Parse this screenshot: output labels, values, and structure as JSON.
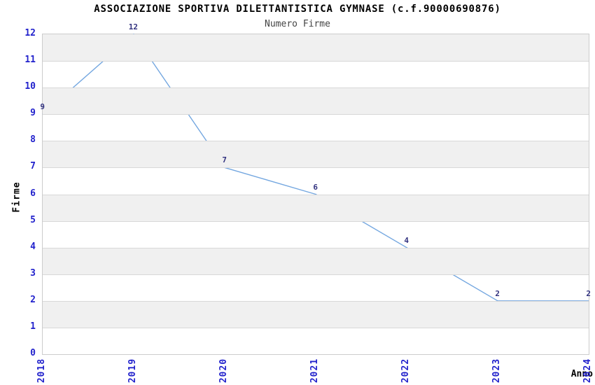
{
  "page": {
    "title": "ASSOCIAZIONE SPORTIVA DILETTANTISTICA GYMNASE (c.f.90000690876)",
    "subtitle": "Numero Firme"
  },
  "chart_data": {
    "type": "line",
    "title": "ASSOCIAZIONE SPORTIVA DILETTANTISTICA GYMNASE (c.f.90000690876)",
    "subtitle": "Numero Firme",
    "xlabel": "Anno",
    "ylabel": "Firme",
    "categories": [
      "2018",
      "2019",
      "2020",
      "2021",
      "2022",
      "2023",
      "2024"
    ],
    "series": [
      {
        "name": "Numero Firme",
        "values": [
          9,
          12,
          7,
          6,
          4,
          2,
          2
        ]
      }
    ],
    "point_labels": [
      "9",
      "12",
      "7",
      "6",
      "4",
      "2",
      "2"
    ],
    "ylim": [
      0,
      12
    ],
    "y_ticks": [
      0,
      1,
      2,
      3,
      4,
      5,
      6,
      7,
      8,
      9,
      10,
      11,
      12
    ],
    "grid": true,
    "legend": "none",
    "shaded_bands": [
      [
        1,
        2
      ],
      [
        3,
        4
      ],
      [
        5,
        6
      ],
      [
        7,
        8
      ],
      [
        9,
        10
      ],
      [
        11,
        12
      ]
    ],
    "colors": {
      "line": "#74a7e0",
      "tick_label": "#2222cc",
      "point_label": "#333380",
      "band": "#f0f0f0",
      "gridline": "#d8d8d8",
      "plot_border": "#cccccc",
      "title": "#000000",
      "subtitle": "#444444",
      "axis_label": "#000000",
      "background": "#ffffff"
    }
  }
}
